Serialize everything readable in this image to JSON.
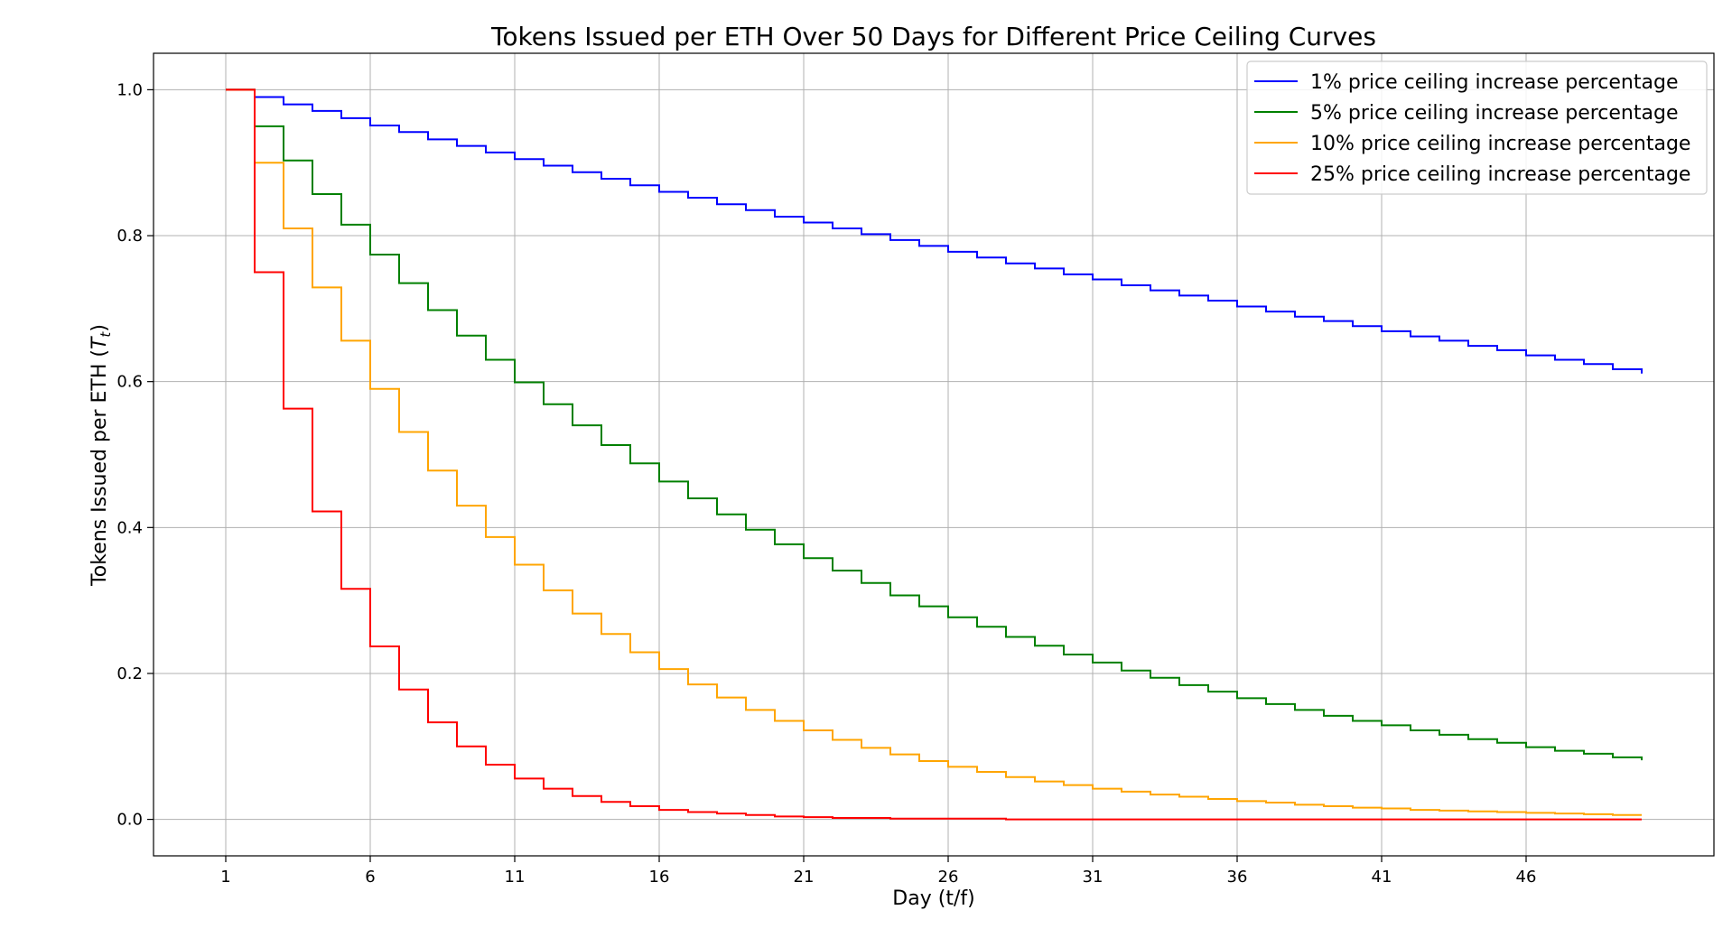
{
  "chart_data": {
    "type": "line",
    "step": "post",
    "title": "Tokens Issued per ETH Over 50 Days for Different Price Ceiling Curves",
    "xlabel": "Day (t/f)",
    "ylabel_main": "Tokens Issued per ETH (",
    "ylabel_sym": "T",
    "ylabel_sub": "t",
    "ylabel_close": ")",
    "xlim": [
      -1.5,
      52.5
    ],
    "ylim": [
      -0.05,
      1.05
    ],
    "xticks": [
      1,
      6,
      11,
      16,
      21,
      26,
      31,
      36,
      41,
      46
    ],
    "xtick_labels": [
      "1",
      "6",
      "11",
      "16",
      "21",
      "26",
      "31",
      "36",
      "41",
      "46"
    ],
    "yticks": [
      0.0,
      0.2,
      0.4,
      0.6,
      0.8,
      1.0
    ],
    "ytick_labels": [
      "0.0",
      "0.2",
      "0.4",
      "0.6",
      "0.8",
      "1.0"
    ],
    "grid": true,
    "legend_position": "top-right",
    "x": [
      1,
      2,
      3,
      4,
      5,
      6,
      7,
      8,
      9,
      10,
      11,
      12,
      13,
      14,
      15,
      16,
      17,
      18,
      19,
      20,
      21,
      22,
      23,
      24,
      25,
      26,
      27,
      28,
      29,
      30,
      31,
      32,
      33,
      34,
      35,
      36,
      37,
      38,
      39,
      40,
      41,
      42,
      43,
      44,
      45,
      46,
      47,
      48,
      49,
      50
    ],
    "series": [
      {
        "name": "1% price ceiling increase percentage",
        "color": "#0000ff",
        "values": [
          1.0,
          0.99,
          0.98,
          0.971,
          0.961,
          0.951,
          0.942,
          0.932,
          0.923,
          0.914,
          0.905,
          0.896,
          0.887,
          0.878,
          0.869,
          0.86,
          0.852,
          0.843,
          0.835,
          0.826,
          0.818,
          0.81,
          0.802,
          0.794,
          0.786,
          0.778,
          0.77,
          0.762,
          0.755,
          0.747,
          0.74,
          0.732,
          0.725,
          0.718,
          0.711,
          0.703,
          0.696,
          0.689,
          0.683,
          0.676,
          0.669,
          0.662,
          0.656,
          0.649,
          0.643,
          0.636,
          0.63,
          0.624,
          0.617,
          0.611
        ]
      },
      {
        "name": "5% price ceiling increase percentage",
        "color": "#008000",
        "values": [
          1.0,
          0.95,
          0.903,
          0.857,
          0.815,
          0.774,
          0.735,
          0.698,
          0.663,
          0.63,
          0.599,
          0.569,
          0.54,
          0.513,
          0.488,
          0.463,
          0.44,
          0.418,
          0.397,
          0.377,
          0.358,
          0.341,
          0.324,
          0.307,
          0.292,
          0.277,
          0.264,
          0.25,
          0.238,
          0.226,
          0.215,
          0.204,
          0.194,
          0.184,
          0.175,
          0.166,
          0.158,
          0.15,
          0.142,
          0.135,
          0.129,
          0.122,
          0.116,
          0.11,
          0.105,
          0.099,
          0.094,
          0.09,
          0.085,
          0.081
        ]
      },
      {
        "name": "10% price ceiling increase percentage",
        "color": "#ffa500",
        "values": [
          1.0,
          0.9,
          0.81,
          0.729,
          0.656,
          0.59,
          0.531,
          0.478,
          0.43,
          0.387,
          0.349,
          0.314,
          0.282,
          0.254,
          0.229,
          0.206,
          0.185,
          0.167,
          0.15,
          0.135,
          0.122,
          0.109,
          0.098,
          0.089,
          0.08,
          0.072,
          0.065,
          0.058,
          0.052,
          0.047,
          0.042,
          0.038,
          0.034,
          0.031,
          0.028,
          0.025,
          0.023,
          0.02,
          0.018,
          0.016,
          0.015,
          0.013,
          0.012,
          0.011,
          0.01,
          0.009,
          0.008,
          0.007,
          0.006,
          0.006
        ]
      },
      {
        "name": "25% price ceiling increase percentage",
        "color": "#ff0000",
        "values": [
          1.0,
          0.75,
          0.563,
          0.422,
          0.316,
          0.237,
          0.178,
          0.133,
          0.1,
          0.075,
          0.056,
          0.042,
          0.032,
          0.024,
          0.018,
          0.013,
          0.01,
          0.008,
          0.006,
          0.004,
          0.003,
          0.002,
          0.002,
          0.001,
          0.001,
          0.001,
          0.001,
          0.0,
          0.0,
          0.0,
          0.0,
          0.0,
          0.0,
          0.0,
          0.0,
          0.0,
          0.0,
          0.0,
          0.0,
          0.0,
          0.0,
          0.0,
          0.0,
          0.0,
          0.0,
          0.0,
          0.0,
          0.0,
          0.0,
          0.0
        ]
      }
    ]
  }
}
